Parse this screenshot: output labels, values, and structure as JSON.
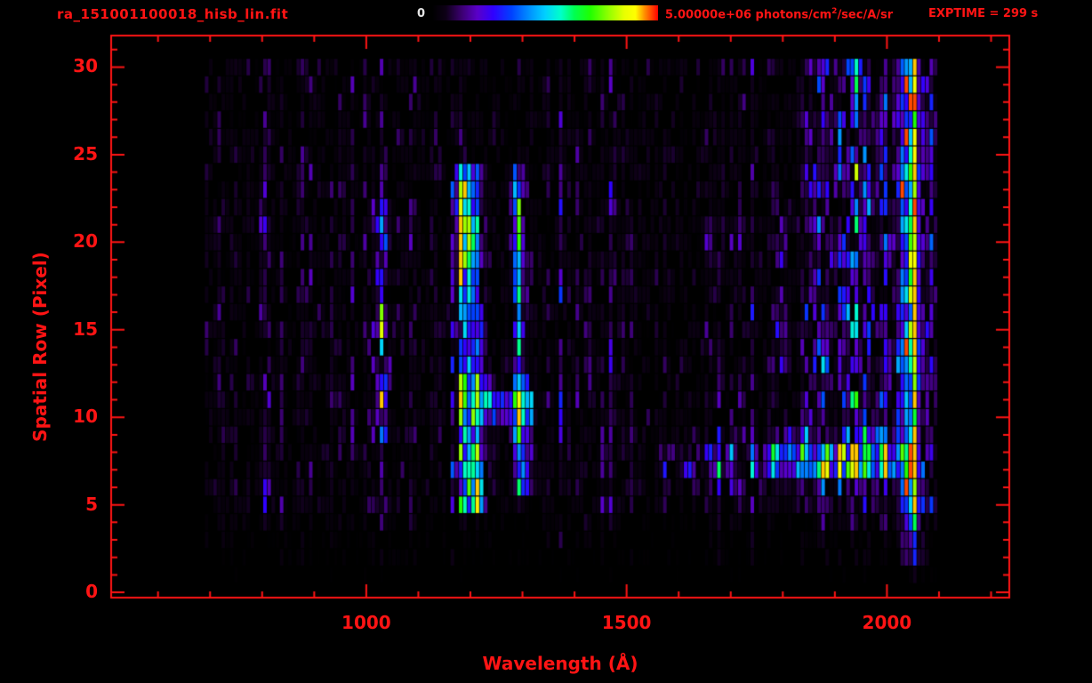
{
  "header": {
    "filename": "ra_151001100018_hisb_lin.fit",
    "colorbar_min_label": "0",
    "colorbar_max_prefix": "5.00000e+06 photons/cm",
    "colorbar_max_sup": "2",
    "colorbar_max_suffix": "/sec/A/sr",
    "exptime_label": "EXPTIME = 299 s"
  },
  "colors": {
    "background": "#000000",
    "accent_red": "#ff1414",
    "colorbar_zero_label": "#e6e6e6",
    "colormap": [
      [
        0.0,
        "#000000"
      ],
      [
        0.06,
        "#0d0016"
      ],
      [
        0.13,
        "#3b0070"
      ],
      [
        0.2,
        "#5a00c8"
      ],
      [
        0.27,
        "#3000ff"
      ],
      [
        0.35,
        "#0040ff"
      ],
      [
        0.43,
        "#0090ff"
      ],
      [
        0.5,
        "#00d0ff"
      ],
      [
        0.57,
        "#00ffc8"
      ],
      [
        0.63,
        "#00ff50"
      ],
      [
        0.7,
        "#20ff00"
      ],
      [
        0.78,
        "#90ff00"
      ],
      [
        0.85,
        "#e8ff00"
      ],
      [
        0.9,
        "#ffff00"
      ],
      [
        0.94,
        "#ff9000"
      ],
      [
        1.0,
        "#ff0000"
      ]
    ]
  },
  "chart_data": {
    "type": "heatmap",
    "title": "ra_151001100018_hisb_lin.fit",
    "xlabel": "Wavelength (Å)",
    "ylabel": "Spatial Row (Pixel)",
    "xlim": [
      510,
      2235
    ],
    "ylim": [
      -0.3,
      31.8
    ],
    "xticks": [
      1000,
      1500,
      2000
    ],
    "xminor_step": 100,
    "yticks": [
      0,
      5,
      10,
      15,
      20,
      25,
      30
    ],
    "yminor_step": 1,
    "colorbar": {
      "min": 0,
      "max": 5000000,
      "max_label": "5.00000e+06",
      "units": "photons/cm^2/sec/A/sr"
    },
    "exposure_time_s": 299,
    "bin_width_A": 8,
    "render_seed": 20151001,
    "data_extent": {
      "wavelength": [
        690,
        2105
      ],
      "rows": [
        1,
        30
      ]
    },
    "background": {
      "level": 0.08,
      "enhanced_region": {
        "wavelength": [
          1845,
          2100
        ],
        "level": 0.15
      }
    },
    "row_activity": [
      [
        1,
        1,
        0.05
      ],
      [
        2,
        2,
        0.3
      ],
      [
        3,
        3,
        0.35
      ],
      [
        4,
        4,
        0.5
      ],
      [
        5,
        24,
        1.0
      ],
      [
        25,
        30,
        0.85
      ]
    ],
    "features": [
      {
        "kind": "vline",
        "name": "primary-emission-line",
        "wavelength": 1200,
        "sigma": 15,
        "tilt_A_per_row": -0.7,
        "rows": [
          5,
          24
        ],
        "peak": 0.95,
        "bright_rows": [
          [
            5,
            8
          ],
          [
            19,
            23
          ]
        ]
      },
      {
        "kind": "vline",
        "name": "secondary-emission-line",
        "wavelength": 1295,
        "sigma": 10,
        "tilt_A_per_row": -0.7,
        "rows": [
          6,
          24
        ],
        "peak": 0.55,
        "bright_rows": [
          [
            6,
            12
          ],
          [
            18,
            23
          ]
        ]
      },
      {
        "kind": "vline",
        "name": "long-wavelength-bright-band",
        "wavelength": 2045,
        "sigma": 13,
        "rows": [
          1,
          30
        ],
        "peak": 0.75,
        "red_spike_prob": 0.05
      },
      {
        "kind": "vline",
        "name": "faint-band-1030",
        "wavelength": 1030,
        "sigma": 9,
        "rows": [
          9,
          22
        ],
        "peak": 0.3
      },
      {
        "kind": "vline",
        "name": "faint-band-1800",
        "wavelength": 1800,
        "sigma": 9,
        "rows": [
          8,
          21
        ],
        "peak": 0.2
      },
      {
        "kind": "hstreak",
        "name": "row8-streak-bright",
        "row": 7.5,
        "row_sigma": 0.8,
        "wavelength": [
          1760,
          2060
        ],
        "peak": 0.5
      },
      {
        "kind": "hstreak",
        "name": "row8-streak-faint",
        "row": 7.5,
        "row_sigma": 0.8,
        "wavelength": [
          1560,
          1760
        ],
        "peak": 0.22
      },
      {
        "kind": "hstreak",
        "name": "cross-streak-row11",
        "row": 10.8,
        "row_sigma": 0.9,
        "wavelength": [
          1180,
          1325
        ],
        "peak": 0.5
      },
      {
        "kind": "patch",
        "name": "diffuse-longwave-noise",
        "wavelength": [
          1840,
          2030
        ],
        "rows": [
          8,
          30
        ],
        "peak": 0.22
      }
    ]
  }
}
